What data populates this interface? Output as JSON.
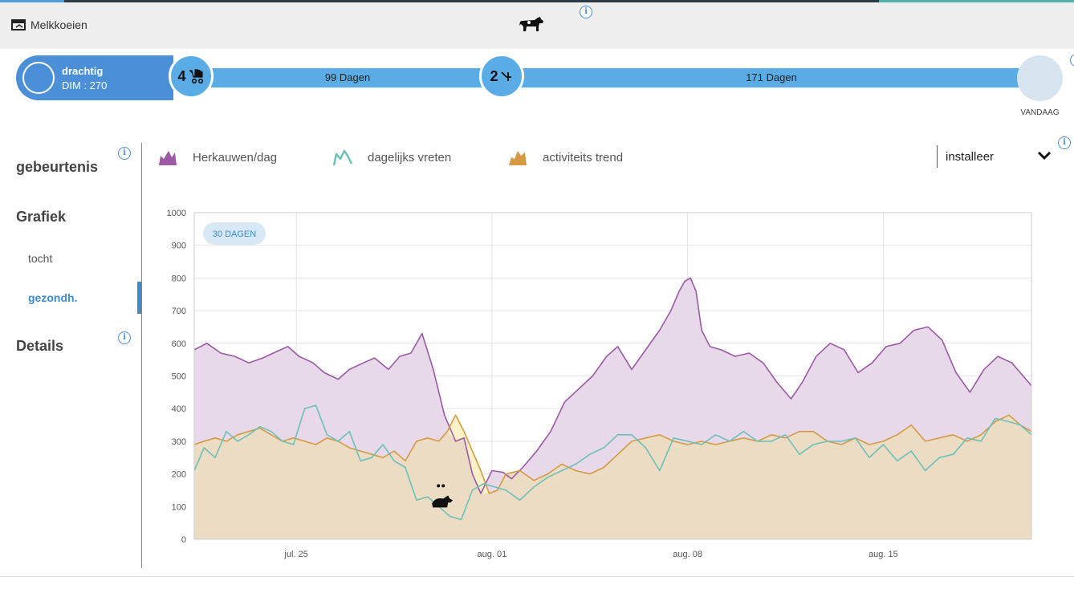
{
  "header": {
    "back_label": "Melkkoeien",
    "cow_icon": "cow-icon",
    "info_icon": "info-icon"
  },
  "timeline": {
    "status": "drachtig",
    "dim": "DIM : 270",
    "node1_number": "4",
    "node1_icon": "stroller-icon",
    "segment1_label": "99 Dagen",
    "node2_number": "2",
    "node2_icon": "insemination-icon",
    "segment2_label": "171 Dagen",
    "today_label": "VANDAAG"
  },
  "sidebar": {
    "events": "gebeurtenis",
    "chart": "Grafiek",
    "sub_items": [
      "tocht",
      "gezondh."
    ],
    "active": "gezondh.",
    "details": "Details"
  },
  "legend": {
    "items": [
      {
        "label": "Herkauwen/dag",
        "color": "#9b59a6",
        "icon": "area-icon"
      },
      {
        "label": "dagelijks vreten",
        "color": "#6dc0b8",
        "icon": "line-icon"
      },
      {
        "label": "activiteits trend",
        "color": "#d49a44",
        "icon": "area-icon"
      }
    ]
  },
  "dropdown": {
    "value": "installeer",
    "icon": "chevron-down-icon"
  },
  "colors": {
    "rumination": "#9b59a6",
    "rumination_fill": "#e8d9ea",
    "feeding": "#6dc0b8",
    "activity": "#d49a44",
    "activity_fill": "#ecdcc4",
    "activity_peak_fill": "#fbf1c8",
    "accent": "#4b8fd8"
  },
  "chart_data": {
    "type": "line",
    "badge": "30 DAGEN",
    "y_ticks": [
      "0",
      "100",
      "200",
      "300",
      "400",
      "500",
      "600",
      "700",
      "800",
      "900",
      "1000"
    ],
    "ylim": [
      0,
      1000
    ],
    "x_ticks": [
      {
        "day": 6.5,
        "label": "jul. 25"
      },
      {
        "day": 13.5,
        "label": "aug. 01"
      },
      {
        "day": 20.5,
        "label": "aug. 08"
      },
      {
        "day": 27.5,
        "label": "aug. 15"
      }
    ],
    "xlim": [
      2.85,
      32.8
    ],
    "grid": true,
    "annotations": [
      {
        "day": 11.7,
        "y": 90,
        "icon": "sick-cow-icon"
      }
    ],
    "series": [
      {
        "name": "Herkauwen/dag",
        "color": "#9b59a6",
        "fill": true,
        "x": [
          2.85,
          3.3,
          3.8,
          4.3,
          4.8,
          5.3,
          5.8,
          6.2,
          6.6,
          7.1,
          7.5,
          8.0,
          8.4,
          8.9,
          9.3,
          9.8,
          10.2,
          10.6,
          11.0,
          11.4,
          11.8,
          12.2,
          12.5,
          12.8,
          13.1,
          13.5,
          13.9,
          14.2,
          14.6,
          15.1,
          15.6,
          16.1,
          16.6,
          17.1,
          17.6,
          18.0,
          18.5,
          19.0,
          19.5,
          19.9,
          20.2,
          20.4,
          20.6,
          20.8,
          21.0,
          21.3,
          21.7,
          22.2,
          22.7,
          23.2,
          23.7,
          24.2,
          24.6,
          25.1,
          25.6,
          26.1,
          26.6,
          27.1,
          27.6,
          28.1,
          28.6,
          29.1,
          29.6,
          30.1,
          30.6,
          31.1,
          31.6,
          32.1,
          32.5,
          32.8
        ],
        "y": [
          580,
          600,
          570,
          560,
          540,
          555,
          575,
          590,
          560,
          540,
          510,
          490,
          520,
          540,
          555,
          520,
          560,
          570,
          630,
          520,
          380,
          300,
          310,
          200,
          140,
          210,
          205,
          185,
          220,
          270,
          330,
          420,
          460,
          500,
          560,
          590,
          520,
          580,
          640,
          700,
          760,
          790,
          800,
          760,
          640,
          590,
          580,
          560,
          570,
          540,
          480,
          430,
          480,
          560,
          600,
          580,
          510,
          540,
          590,
          600,
          640,
          650,
          610,
          510,
          450,
          520,
          560,
          540,
          500,
          470
        ]
      },
      {
        "name": "dagelijks vreten",
        "color": "#6dc0b8",
        "fill": false,
        "x": [
          2.85,
          3.2,
          3.6,
          4.0,
          4.4,
          4.8,
          5.2,
          5.6,
          6.0,
          6.4,
          6.8,
          7.2,
          7.6,
          8.0,
          8.4,
          8.8,
          9.2,
          9.6,
          10.0,
          10.4,
          10.8,
          11.2,
          11.6,
          12.0,
          12.4,
          12.8,
          13.2,
          13.6,
          14.0,
          14.5,
          15.0,
          15.5,
          16.0,
          16.5,
          17.0,
          17.5,
          18.0,
          18.5,
          19.0,
          19.5,
          20.0,
          20.5,
          21.0,
          21.5,
          22.0,
          22.5,
          23.0,
          23.5,
          24.0,
          24.5,
          25.0,
          25.5,
          26.0,
          26.5,
          27.0,
          27.5,
          28.0,
          28.5,
          29.0,
          29.5,
          30.0,
          30.5,
          31.0,
          31.5,
          32.0,
          32.4,
          32.8
        ],
        "y": [
          210,
          280,
          250,
          330,
          300,
          320,
          345,
          330,
          300,
          290,
          400,
          410,
          320,
          300,
          330,
          240,
          250,
          290,
          240,
          220,
          120,
          130,
          100,
          70,
          60,
          150,
          170,
          160,
          150,
          120,
          160,
          190,
          210,
          230,
          260,
          280,
          320,
          320,
          280,
          210,
          310,
          300,
          290,
          320,
          300,
          330,
          300,
          300,
          320,
          260,
          290,
          300,
          300,
          310,
          250,
          290,
          240,
          270,
          210,
          250,
          260,
          310,
          300,
          370,
          360,
          350,
          320
        ]
      },
      {
        "name": "activiteits trend",
        "color": "#d49a44",
        "fill": true,
        "x": [
          2.85,
          3.2,
          3.6,
          4.0,
          4.4,
          4.8,
          5.2,
          5.6,
          6.0,
          6.4,
          6.8,
          7.2,
          7.6,
          8.0,
          8.4,
          8.8,
          9.2,
          9.6,
          10.0,
          10.4,
          10.8,
          11.2,
          11.6,
          11.9,
          12.2,
          12.5,
          12.8,
          13.1,
          13.4,
          13.7,
          14.0,
          14.5,
          15.0,
          15.5,
          16.0,
          16.5,
          17.0,
          17.5,
          18.0,
          18.5,
          19.0,
          19.5,
          20.0,
          20.5,
          21.0,
          21.5,
          22.0,
          22.5,
          23.0,
          23.5,
          24.0,
          24.5,
          25.0,
          25.5,
          26.0,
          26.5,
          27.0,
          27.5,
          28.0,
          28.5,
          29.0,
          29.5,
          30.0,
          30.5,
          31.0,
          31.5,
          32.0,
          32.4,
          32.8
        ],
        "y": [
          290,
          300,
          310,
          300,
          320,
          330,
          340,
          320,
          300,
          310,
          300,
          290,
          310,
          300,
          280,
          270,
          260,
          250,
          270,
          240,
          300,
          310,
          300,
          330,
          380,
          330,
          270,
          210,
          140,
          150,
          200,
          210,
          180,
          200,
          230,
          210,
          200,
          220,
          260,
          300,
          310,
          320,
          300,
          290,
          300,
          290,
          300,
          310,
          300,
          320,
          310,
          330,
          330,
          300,
          290,
          310,
          290,
          300,
          320,
          350,
          300,
          310,
          320,
          300,
          320,
          360,
          380,
          350,
          330
        ]
      }
    ]
  }
}
